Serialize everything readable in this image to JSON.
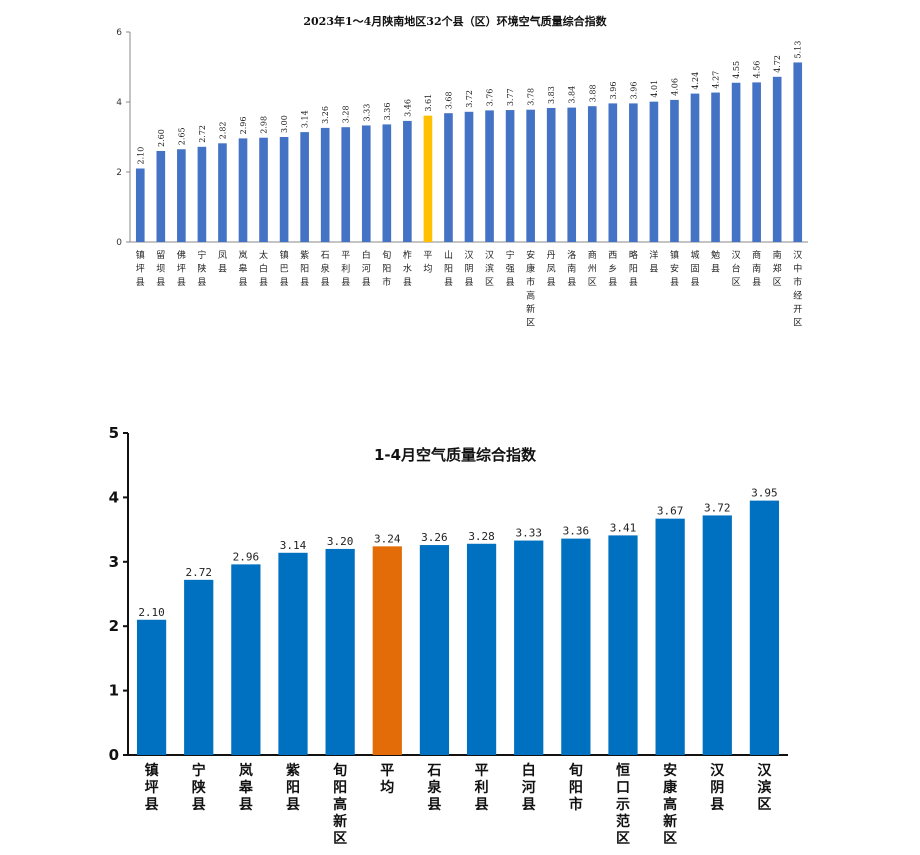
{
  "colors": {
    "bar1": "#4472C4",
    "bar2": "#0070C0",
    "highlight1": "#FFC000",
    "highlight2": "#E36C09"
  },
  "chart_data": [
    {
      "type": "bar",
      "title": "2023年1～4月陕南地区32个县（区）环境空气质量综合指数",
      "xlabel": "",
      "ylabel": "",
      "ylim": [
        0,
        6
      ],
      "yticks": [
        "0",
        "2",
        "4",
        "6"
      ],
      "categories": [
        "镇坪县",
        "留坝县",
        "佛坪县",
        "宁陕县",
        "凤县",
        "岚皋县",
        "太白县",
        "镇巴县",
        "紫阳县",
        "石泉县",
        "平利县",
        "白河县",
        "旬阳市",
        "柞水县",
        "平均",
        "山阳县",
        "汉阴县",
        "汉滨区",
        "宁强县",
        "安康市高新区",
        "丹凤县",
        "洛南县",
        "商州区",
        "西乡县",
        "略阳县",
        "洋县",
        "镇安县",
        "城固县",
        "勉县",
        "汉台区",
        "商南县",
        "南郑区",
        "汉中市经开区"
      ],
      "values": [
        2.1,
        2.6,
        2.65,
        2.72,
        2.82,
        2.96,
        2.98,
        3.0,
        3.14,
        3.26,
        3.28,
        3.33,
        3.36,
        3.46,
        3.61,
        3.68,
        3.72,
        3.76,
        3.77,
        3.78,
        3.83,
        3.84,
        3.88,
        3.96,
        3.96,
        4.01,
        4.06,
        4.24,
        4.27,
        4.55,
        4.56,
        4.72,
        5.13
      ],
      "value_labels": [
        "2.10",
        "2.60",
        "2.65",
        "2.72",
        "2.82",
        "2.96",
        "2.98",
        "3.00",
        "3.14",
        "3.26",
        "3.28",
        "3.33",
        "3.36",
        "3.46",
        "3.61",
        "3.68",
        "3.72",
        "3.76",
        "3.77",
        "3.78",
        "3.83",
        "3.84",
        "3.88",
        "3.96",
        "3.96",
        "4.01",
        "4.06",
        "4.24",
        "4.27",
        "4.55",
        "4.56",
        "4.72",
        "5.13"
      ],
      "highlight_category": "平均",
      "grid": false,
      "legend": "none"
    },
    {
      "type": "bar",
      "title": "1-4月空气质量综合指数",
      "xlabel": "",
      "ylabel": "",
      "ylim": [
        0,
        5
      ],
      "yticks": [
        "0",
        "1",
        "2",
        "3",
        "4",
        "5"
      ],
      "categories": [
        "镇坪县",
        "宁陕县",
        "岚皋县",
        "紫阳县",
        "旬阳高新区",
        "平均",
        "石泉县",
        "平利县",
        "白河县",
        "旬阳市",
        "恒口示范区",
        "安康高新区",
        "汉阴县",
        "汉滨区"
      ],
      "values": [
        2.1,
        2.72,
        2.96,
        3.14,
        3.2,
        3.24,
        3.26,
        3.28,
        3.33,
        3.36,
        3.41,
        3.67,
        3.72,
        3.95
      ],
      "value_labels": [
        "2.10",
        "2.72",
        "2.96",
        "3.14",
        "3.20",
        "3.24",
        "3.26",
        "3.28",
        "3.33",
        "3.36",
        "3.41",
        "3.67",
        "3.72",
        "3.95"
      ],
      "highlight_category": "平均",
      "grid": false,
      "legend": "none"
    }
  ]
}
